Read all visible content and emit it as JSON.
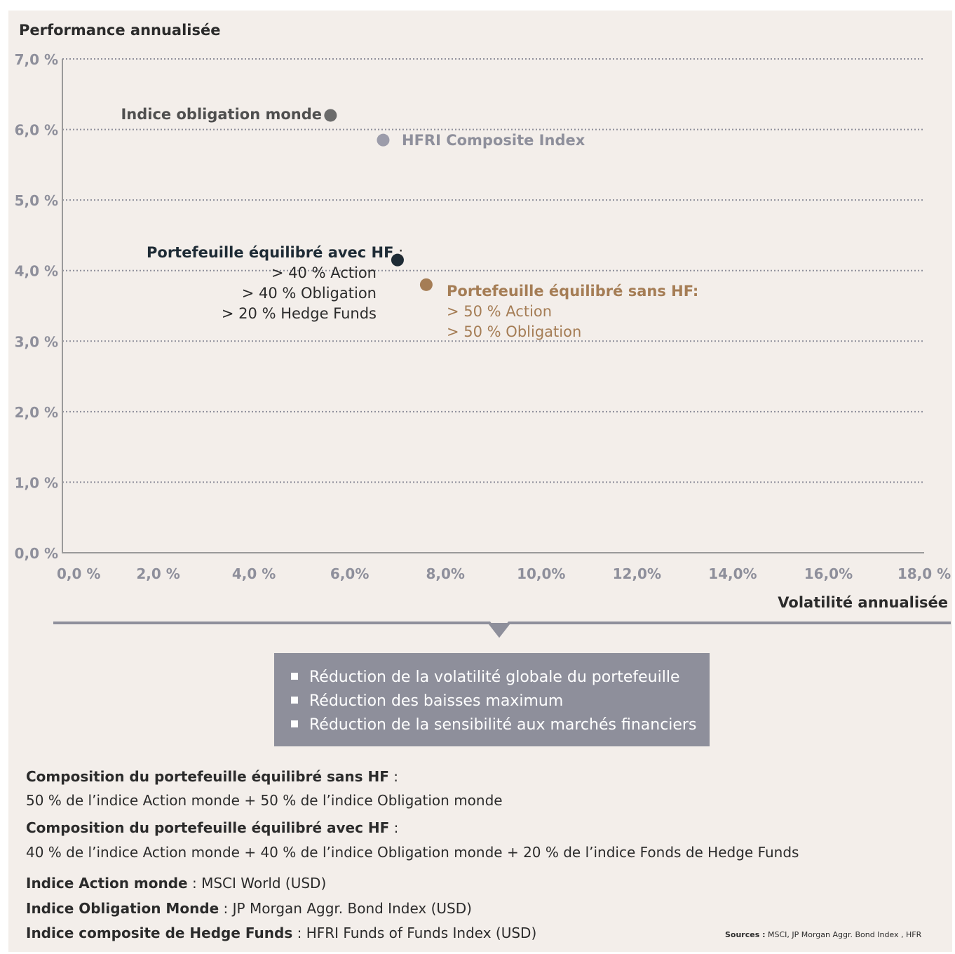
{
  "chart_data": {
    "type": "scatter",
    "ylabel": "Performance annualisée",
    "xlabel": "Volatilité annualisée",
    "xlim": [
      0,
      18
    ],
    "ylim": [
      0,
      7
    ],
    "x_ticks": [
      0,
      2,
      4,
      6,
      8,
      10,
      12,
      14,
      16,
      18
    ],
    "x_tick_labels": [
      "0,0 %",
      "2,0 %",
      "4,0 %",
      "6,0%",
      "8,0%",
      "10,0%",
      "12,0%",
      "14,0%",
      "16,0%",
      "18,0 %"
    ],
    "y_ticks": [
      0,
      1,
      2,
      3,
      4,
      5,
      6,
      7
    ],
    "y_tick_labels": [
      "0,0 %",
      "1,0 %",
      "2,0 %",
      "3,0 %",
      "4,0 %",
      "5,0 %",
      "6,0 %",
      "7,0 %"
    ],
    "grid": "horizontal dotted",
    "series": [
      {
        "name": "Indice obligation monde",
        "x": 5.6,
        "y": 6.2,
        "color": "#6b6b6b"
      },
      {
        "name": "HFRI Composite Index",
        "x": 6.7,
        "y": 5.85,
        "color": "#9c9caa"
      },
      {
        "name": "Portefeuille équilibré avec HF",
        "x": 7.0,
        "y": 4.15,
        "color": "#1e2b35"
      },
      {
        "name": "Portefeuille équilibré sans HF:",
        "x": 7.6,
        "y": 3.8,
        "color": "#a57d55"
      }
    ]
  },
  "annotations": {
    "avec_hf": {
      "title": "Portefeuille équilibré avec HF",
      "sep": " :",
      "lines": [
        "> 40 % Action",
        "> 40 % Obligation",
        "> 20 % Hedge Funds"
      ]
    },
    "sans_hf": {
      "title": "Portefeuille équilibré sans HF:",
      "lines": [
        "> 50 % Action",
        "> 50 % Obligation"
      ]
    }
  },
  "summary_box": {
    "items": [
      "Réduction de la volatilité globale du portefeuille",
      "Réduction des baisses maximum",
      "Réduction  de la sensibilité aux marchés financiers"
    ]
  },
  "notes": {
    "comp_sans_title": "Composition du portefeuille équilibré sans HF",
    "comp_sans_sep": " :",
    "comp_sans_text": "50 % de l’indice Action monde + 50 % de l’indice Obligation monde",
    "comp_avec_title": "Composition du portefeuille équilibré avec HF",
    "comp_avec_sep": " :",
    "comp_avec_text": "40 % de l’indice Action monde + 40 % de l’indice Obligation monde + 20 % de l’indice Fonds de Hedge Funds",
    "idx_action_title": "Indice Action monde",
    "idx_action_text": " : MSCI  World (USD)",
    "idx_oblig_title": "Indice Obligation Monde",
    "idx_oblig_text": " : JP Morgan Aggr. Bond Index (USD)",
    "idx_hf_title": "Indice composite de Hedge Funds",
    "idx_hf_text": " : HFRI Funds of Funds Index (USD)"
  },
  "sources": {
    "label": "Sources :",
    "text": " MSCI, JP Morgan Aggr.  Bond Index , HFR"
  },
  "colors": {
    "background": "#f3eeea",
    "axis": "#9a9a9a",
    "tick_label": "#8e8f9b",
    "text": "#2b2b2b",
    "box": "#8e8f9b"
  }
}
